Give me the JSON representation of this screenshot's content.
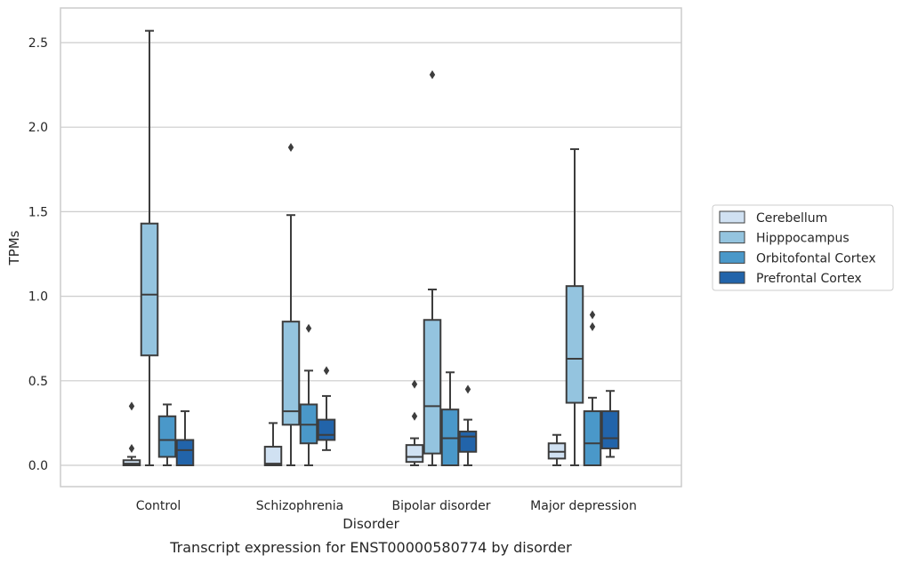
{
  "chart_data": {
    "type": "box",
    "title": "",
    "caption": "Transcript expression for ENST00000580774 by disorder",
    "xlabel": "Disorder",
    "ylabel": "TPMs",
    "ylim": [
      -0.12,
      2.7
    ],
    "yticks": [
      0.0,
      0.5,
      1.0,
      1.5,
      2.0,
      2.5
    ],
    "ytick_labels": [
      "0.0",
      "0.5",
      "1.0",
      "1.5",
      "2.0",
      "2.5"
    ],
    "categories": [
      "Control",
      "Schizophrenia",
      "Bipolar disorder",
      "Major depression"
    ],
    "grid": "horizontal",
    "legend_position": "right",
    "series": [
      {
        "name": "Cerebellum",
        "color": "#d0e1f2",
        "boxes": [
          {
            "whislo": 0.0,
            "q1": 0.0,
            "med": 0.01,
            "q3": 0.03,
            "whishi": 0.05,
            "fliers": [
              0.1,
              0.35
            ]
          },
          {
            "whislo": 0.0,
            "q1": 0.0,
            "med": 0.01,
            "q3": 0.11,
            "whishi": 0.25,
            "fliers": []
          },
          {
            "whislo": 0.0,
            "q1": 0.02,
            "med": 0.05,
            "q3": 0.12,
            "whishi": 0.16,
            "fliers": [
              0.29,
              0.48
            ]
          },
          {
            "whislo": 0.0,
            "q1": 0.04,
            "med": 0.08,
            "q3": 0.13,
            "whishi": 0.18,
            "fliers": []
          }
        ]
      },
      {
        "name": "Hipppocampus",
        "color": "#94c4df",
        "boxes": [
          {
            "whislo": 0.0,
            "q1": 0.65,
            "med": 1.01,
            "q3": 1.43,
            "whishi": 2.57,
            "fliers": []
          },
          {
            "whislo": 0.0,
            "q1": 0.24,
            "med": 0.32,
            "q3": 0.85,
            "whishi": 1.48,
            "fliers": [
              1.88
            ]
          },
          {
            "whislo": 0.0,
            "q1": 0.07,
            "med": 0.35,
            "q3": 0.86,
            "whishi": 1.04,
            "fliers": [
              2.31
            ]
          },
          {
            "whislo": 0.0,
            "q1": 0.37,
            "med": 0.63,
            "q3": 1.06,
            "whishi": 1.87,
            "fliers": []
          }
        ]
      },
      {
        "name": "Orbitofontal Cortex",
        "color": "#4a98c9",
        "boxes": [
          {
            "whislo": 0.0,
            "q1": 0.05,
            "med": 0.15,
            "q3": 0.29,
            "whishi": 0.36,
            "fliers": []
          },
          {
            "whislo": 0.0,
            "q1": 0.13,
            "med": 0.24,
            "q3": 0.36,
            "whishi": 0.56,
            "fliers": [
              0.81
            ]
          },
          {
            "whislo": 0.0,
            "q1": 0.0,
            "med": 0.16,
            "q3": 0.33,
            "whishi": 0.55,
            "fliers": []
          },
          {
            "whislo": 0.0,
            "q1": 0.0,
            "med": 0.13,
            "q3": 0.32,
            "whishi": 0.4,
            "fliers": [
              0.82,
              0.89
            ]
          }
        ]
      },
      {
        "name": "Prefrontal Cortex",
        "color": "#2264aa",
        "boxes": [
          {
            "whislo": 0.0,
            "q1": 0.0,
            "med": 0.09,
            "q3": 0.15,
            "whishi": 0.32,
            "fliers": []
          },
          {
            "whislo": 0.09,
            "q1": 0.15,
            "med": 0.18,
            "q3": 0.27,
            "whishi": 0.41,
            "fliers": [
              0.56
            ]
          },
          {
            "whislo": 0.0,
            "q1": 0.08,
            "med": 0.17,
            "q3": 0.2,
            "whishi": 0.27,
            "fliers": [
              0.45
            ]
          },
          {
            "whislo": 0.05,
            "q1": 0.1,
            "med": 0.16,
            "q3": 0.32,
            "whishi": 0.44,
            "fliers": []
          }
        ]
      }
    ]
  }
}
